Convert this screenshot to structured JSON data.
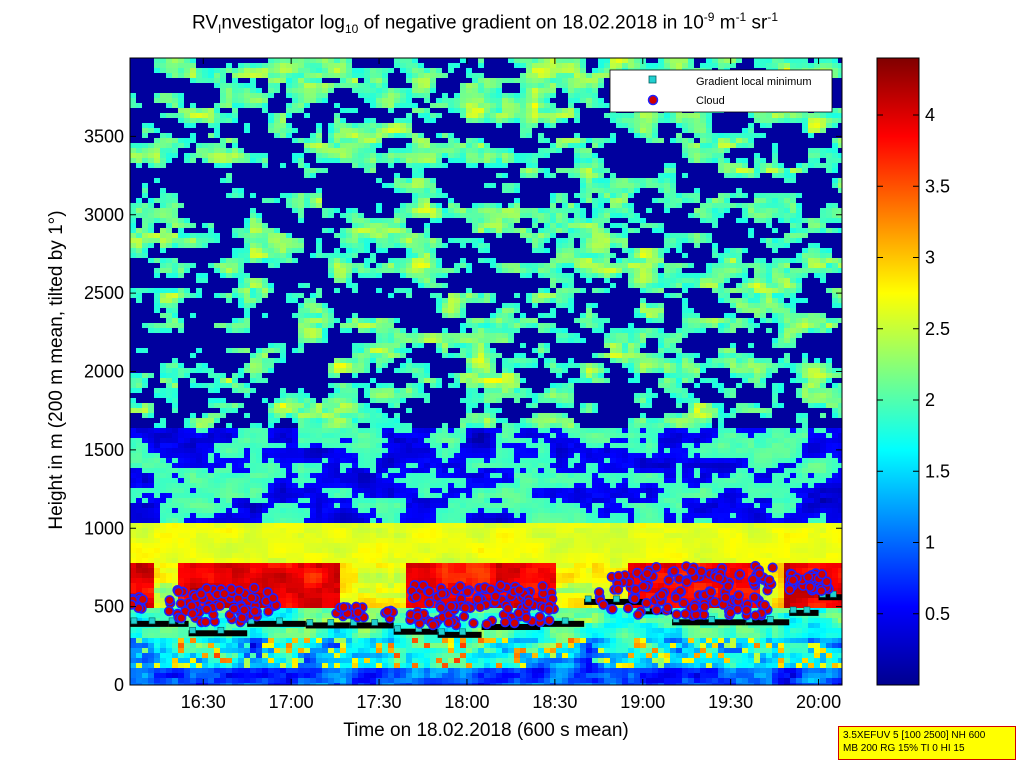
{
  "title": {
    "prefix": "RV",
    "subscript_i": "I",
    "middle": "nvestigator log",
    "subscript_10": "10",
    "after_log": " of negative gradient on 18.02.2018 in 10",
    "exp1": "-9",
    "unit_m": " m",
    "exp2": "-1",
    "unit_sr": " sr",
    "exp3": "-1"
  },
  "status_box": {
    "line1": "3.5XEFUV 5 [100 2500] NH 600",
    "line2": "MB 200 RG 15% TI 0 HI 15"
  },
  "colors": {
    "cloud_marker_fill": "#d00000",
    "cloud_marker_edge": "#2020ff",
    "local_min_marker": "#20d0d0",
    "local_min_edge": "#006060"
  },
  "chart_data": {
    "type": "heatmap",
    "xlabel": "Time on 18.02.2018 (600 s mean)",
    "ylabel": "Height in m (200 m mean, tilted by 1°)",
    "xlim": [
      "16:05",
      "20:08"
    ],
    "ylim": [
      0,
      4000
    ],
    "x_ticks": [
      "16:30",
      "17:00",
      "17:30",
      "18:00",
      "18:30",
      "19:00",
      "19:30",
      "20:00"
    ],
    "y_ticks": [
      0,
      500,
      1000,
      1500,
      2000,
      2500,
      3000,
      3500
    ],
    "colorbar": {
      "ticks": [
        0.5,
        1,
        1.5,
        2,
        2.5,
        3,
        3.5,
        4
      ],
      "range": [
        0,
        4.4
      ],
      "colormap": "jet"
    },
    "legend": {
      "placement": "top-right",
      "entries": [
        {
          "label": "Gradient local minimum",
          "marker": "square",
          "color": "#20d0d0"
        },
        {
          "label": "Cloud",
          "marker": "circle",
          "color": "#d00000"
        }
      ]
    },
    "series": [
      {
        "name": "Gradient local minimum",
        "segments": [
          {
            "t0": "16:05",
            "t1": "16:18",
            "height": 390
          },
          {
            "t0": "16:18",
            "t1": "16:25",
            "height": 390
          },
          {
            "t0": "16:25",
            "t1": "16:45",
            "height": 330
          },
          {
            "t0": "16:45",
            "t1": "17:05",
            "height": 390
          },
          {
            "t0": "17:05",
            "t1": "17:20",
            "height": 380
          },
          {
            "t0": "17:20",
            "t1": "17:35",
            "height": 380
          },
          {
            "t0": "17:35",
            "t1": "17:50",
            "height": 340
          },
          {
            "t0": "17:50",
            "t1": "18:05",
            "height": 320
          },
          {
            "t0": "18:05",
            "t1": "18:25",
            "height": 370
          },
          {
            "t0": "18:25",
            "t1": "18:40",
            "height": 390
          },
          {
            "t0": "18:40",
            "t1": "19:00",
            "height": 530
          },
          {
            "t0": "19:00",
            "t1": "19:10",
            "height": 470
          },
          {
            "t0": "19:10",
            "t1": "19:35",
            "height": 400
          },
          {
            "t0": "19:35",
            "t1": "19:50",
            "height": 400
          },
          {
            "t0": "19:50",
            "t1": "20:00",
            "height": 460
          },
          {
            "t0": "20:00",
            "t1": "20:08",
            "height": 560
          }
        ]
      },
      {
        "name": "Cloud",
        "clusters": [
          {
            "t0": "16:05",
            "t1": "16:10",
            "h0": 470,
            "h1": 560
          },
          {
            "t0": "16:18",
            "t1": "16:55",
            "h0": 400,
            "h1": 620
          },
          {
            "t0": "17:15",
            "t1": "17:25",
            "h0": 430,
            "h1": 500
          },
          {
            "t0": "17:32",
            "t1": "17:35",
            "h0": 420,
            "h1": 480
          },
          {
            "t0": "17:40",
            "t1": "18:30",
            "h0": 380,
            "h1": 640
          },
          {
            "t0": "18:45",
            "t1": "19:45",
            "h0": 440,
            "h1": 760
          },
          {
            "t0": "19:50",
            "t1": "20:05",
            "h0": 600,
            "h1": 720
          }
        ]
      }
    ]
  }
}
